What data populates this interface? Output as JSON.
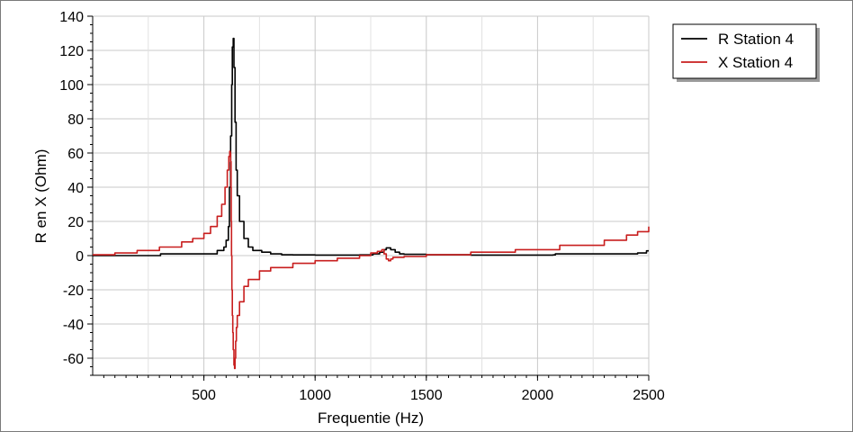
{
  "chart_data": {
    "type": "line",
    "xlabel": "Frequentie (Hz)",
    "ylabel": "R en X (Ohm)",
    "xlim": [
      0,
      2500
    ],
    "ylim": [
      -70,
      140
    ],
    "xticks": [
      500,
      1000,
      1500,
      2000,
      2500
    ],
    "yticks": [
      140,
      120,
      100,
      80,
      60,
      40,
      20,
      0,
      -20,
      -40,
      -60
    ],
    "grid": true,
    "legend_position": "top-right",
    "series": [
      {
        "name": "R Station 4",
        "color": "#000000",
        "x": [
          0,
          300,
          305,
          500,
          560,
          590,
          600,
          610,
          615,
          620,
          625,
          628,
          632,
          635,
          640,
          645,
          650,
          660,
          680,
          700,
          720,
          760,
          800,
          850,
          900,
          1000,
          1100,
          1200,
          1260,
          1290,
          1310,
          1320,
          1330,
          1340,
          1360,
          1380,
          1400,
          1500,
          1700,
          1900,
          2070,
          2080,
          2300,
          2450,
          2490,
          2500
        ],
        "y": [
          0,
          0,
          1,
          1,
          3,
          5,
          9,
          17,
          40,
          70,
          100,
          122,
          127,
          110,
          78,
          50,
          35,
          20,
          10,
          5,
          3,
          2,
          1,
          0.5,
          0.4,
          0.3,
          0.3,
          0.4,
          1,
          2,
          3.5,
          4.5,
          4.5,
          3.5,
          2,
          1,
          0.8,
          0.5,
          0.3,
          0.3,
          0.4,
          1,
          1,
          1.5,
          2.8,
          2.8
        ]
      },
      {
        "name": "X Station 4",
        "color": "#c81e1e",
        "x": [
          0,
          100,
          200,
          300,
          400,
          450,
          500,
          530,
          560,
          580,
          595,
          605,
          612,
          616,
          618,
          620,
          622,
          623,
          624,
          626,
          628,
          630,
          632,
          635,
          638,
          640,
          643,
          646,
          650,
          660,
          680,
          700,
          750,
          800,
          900,
          1000,
          1100,
          1200,
          1250,
          1280,
          1300,
          1310,
          1320,
          1330,
          1340,
          1350,
          1400,
          1500,
          1700,
          1900,
          2100,
          2300,
          2400,
          2450,
          2500
        ],
        "y": [
          0.5,
          1.5,
          3,
          5,
          8,
          10,
          13,
          17,
          23,
          30,
          40,
          50,
          58,
          61,
          60,
          55,
          40,
          20,
          0,
          -20,
          -35,
          -45,
          -55,
          -64,
          -66,
          -60,
          -50,
          -42,
          -35,
          -27,
          -18,
          -14,
          -9,
          -7,
          -4.5,
          -3,
          -1.5,
          0,
          1.5,
          2.5,
          3.5,
          1,
          -2,
          -3,
          -2,
          -1,
          -0.5,
          0.5,
          2,
          3.5,
          6,
          9,
          12,
          14,
          17
        ]
      }
    ]
  }
}
